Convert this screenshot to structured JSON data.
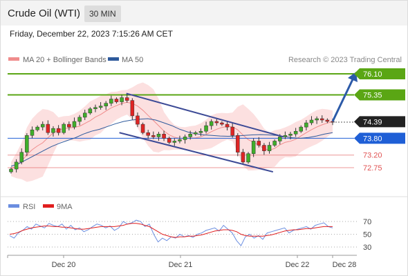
{
  "header": {
    "title": "Crude Oil (WTI)",
    "timeframe": "30 MIN"
  },
  "date_line": "Friday, December 22, 2023 7:15:26 AM CET",
  "legend": {
    "bollinger_label": "MA 20 + Bollinger Bands",
    "ma50_label": "MA 50",
    "credit": "Research © 2023 Trading Central"
  },
  "colors": {
    "bollinger": "#f08c8c",
    "ma50": "#2e5a9c",
    "resistance": "#5aa614",
    "support": "#e05252",
    "current": "#1f5fd6",
    "price_box": "#222222",
    "channel": "#3c4a96",
    "arrow": "#2c5aa8",
    "rsi": "#6b8ee0",
    "rsi_ma": "#e01e1e"
  },
  "chart_data": [
    {
      "type": "candlestick",
      "title": "Crude Oil (WTI)",
      "timeframe": "30 MIN",
      "ylim": [
        72.2,
        76.4
      ],
      "x_ticks": [
        "Dec 20",
        "Dec 21",
        "Dec 22",
        "Dec 28"
      ],
      "price_levels": [
        {
          "label": "76.10",
          "value": 76.1,
          "kind": "resistance"
        },
        {
          "label": "75.35",
          "value": 75.35,
          "kind": "resistance"
        },
        {
          "label": "74.39",
          "value": 74.39,
          "kind": "last_price"
        },
        {
          "label": "73.80",
          "value": 73.8,
          "kind": "pivot"
        },
        {
          "label": "73.20",
          "value": 73.2,
          "kind": "support"
        },
        {
          "label": "72.75",
          "value": 72.75,
          "kind": "support"
        }
      ],
      "close_path": [
        72.7,
        72.95,
        73.3,
        73.9,
        74.1,
        74.2,
        74.3,
        74.0,
        74.15,
        74.0,
        74.3,
        74.2,
        74.4,
        74.55,
        74.7,
        74.85,
        74.9,
        74.95,
        75.05,
        75.2,
        75.1,
        75.25,
        75.15,
        74.6,
        74.3,
        74.0,
        73.9,
        73.85,
        73.95,
        73.8,
        73.65,
        73.7,
        73.75,
        73.85,
        73.95,
        74.0,
        74.05,
        74.25,
        74.4,
        74.35,
        74.3,
        74.2,
        73.9,
        73.3,
        72.95,
        73.25,
        73.7,
        73.55,
        73.35,
        73.55,
        73.7,
        73.85,
        73.9,
        73.95,
        74.05,
        74.2,
        74.35,
        74.45,
        74.5,
        74.45,
        74.4,
        74.39
      ],
      "ma50_path": [
        72.8,
        72.9,
        73.05,
        73.2,
        73.35,
        73.5,
        73.62,
        73.72,
        73.82,
        73.95,
        74.05,
        74.12,
        74.22,
        74.32,
        74.4,
        74.45,
        74.48,
        74.5,
        74.45,
        74.35,
        74.25,
        74.12,
        74.02,
        73.96,
        73.92,
        73.9,
        73.88,
        73.87,
        73.88,
        73.9,
        73.92,
        73.93,
        73.92,
        73.9,
        73.86,
        73.82,
        73.8,
        73.83,
        73.88,
        73.95,
        74.0
      ],
      "channel_lines": [
        {
          "from": [
            75.4,
            0.34
          ],
          "to": [
            73.85,
            0.79
          ]
        },
        {
          "from": [
            74.0,
            0.32
          ],
          "to": [
            72.6,
            0.76
          ]
        }
      ],
      "projection_target": 76.1
    },
    {
      "type": "line",
      "title": "RSI",
      "series": [
        {
          "name": "RSI"
        },
        {
          "name": "9MA"
        }
      ],
      "ylim": [
        20,
        80
      ],
      "y_ticks": [
        70,
        50,
        30
      ],
      "rsi_path": [
        48,
        44,
        52,
        56,
        62,
        58,
        66,
        63,
        60,
        67,
        64,
        62,
        66,
        58,
        64,
        57,
        60,
        54,
        57,
        62,
        66,
        64,
        60,
        63,
        56,
        60,
        70,
        66,
        68,
        72,
        70,
        62,
        66,
        50,
        38,
        44,
        40,
        46,
        44,
        50,
        46,
        48,
        45,
        50,
        52,
        56,
        58,
        60,
        55,
        64,
        58,
        52,
        40,
        32,
        46,
        50,
        44,
        48,
        42,
        52,
        54,
        56,
        58,
        60,
        52,
        56,
        58,
        60,
        62,
        58,
        64,
        66,
        68,
        62,
        60
      ],
      "ma9_path": [
        50,
        51,
        53,
        56,
        58,
        60,
        61,
        62,
        63,
        63,
        62,
        62,
        61,
        61,
        60,
        59,
        58,
        58,
        59,
        60,
        61,
        62,
        62,
        62,
        62,
        63,
        64,
        66,
        67,
        67,
        66,
        64,
        62,
        58,
        54,
        50,
        48,
        46,
        45,
        46,
        46,
        47,
        47,
        48,
        49,
        51,
        53,
        55,
        56,
        57,
        57,
        56,
        54,
        50,
        48,
        47,
        47,
        47,
        47,
        48,
        49,
        51,
        53,
        55,
        56,
        57,
        57,
        58,
        59,
        59,
        60,
        61,
        62,
        62,
        62
      ]
    }
  ]
}
